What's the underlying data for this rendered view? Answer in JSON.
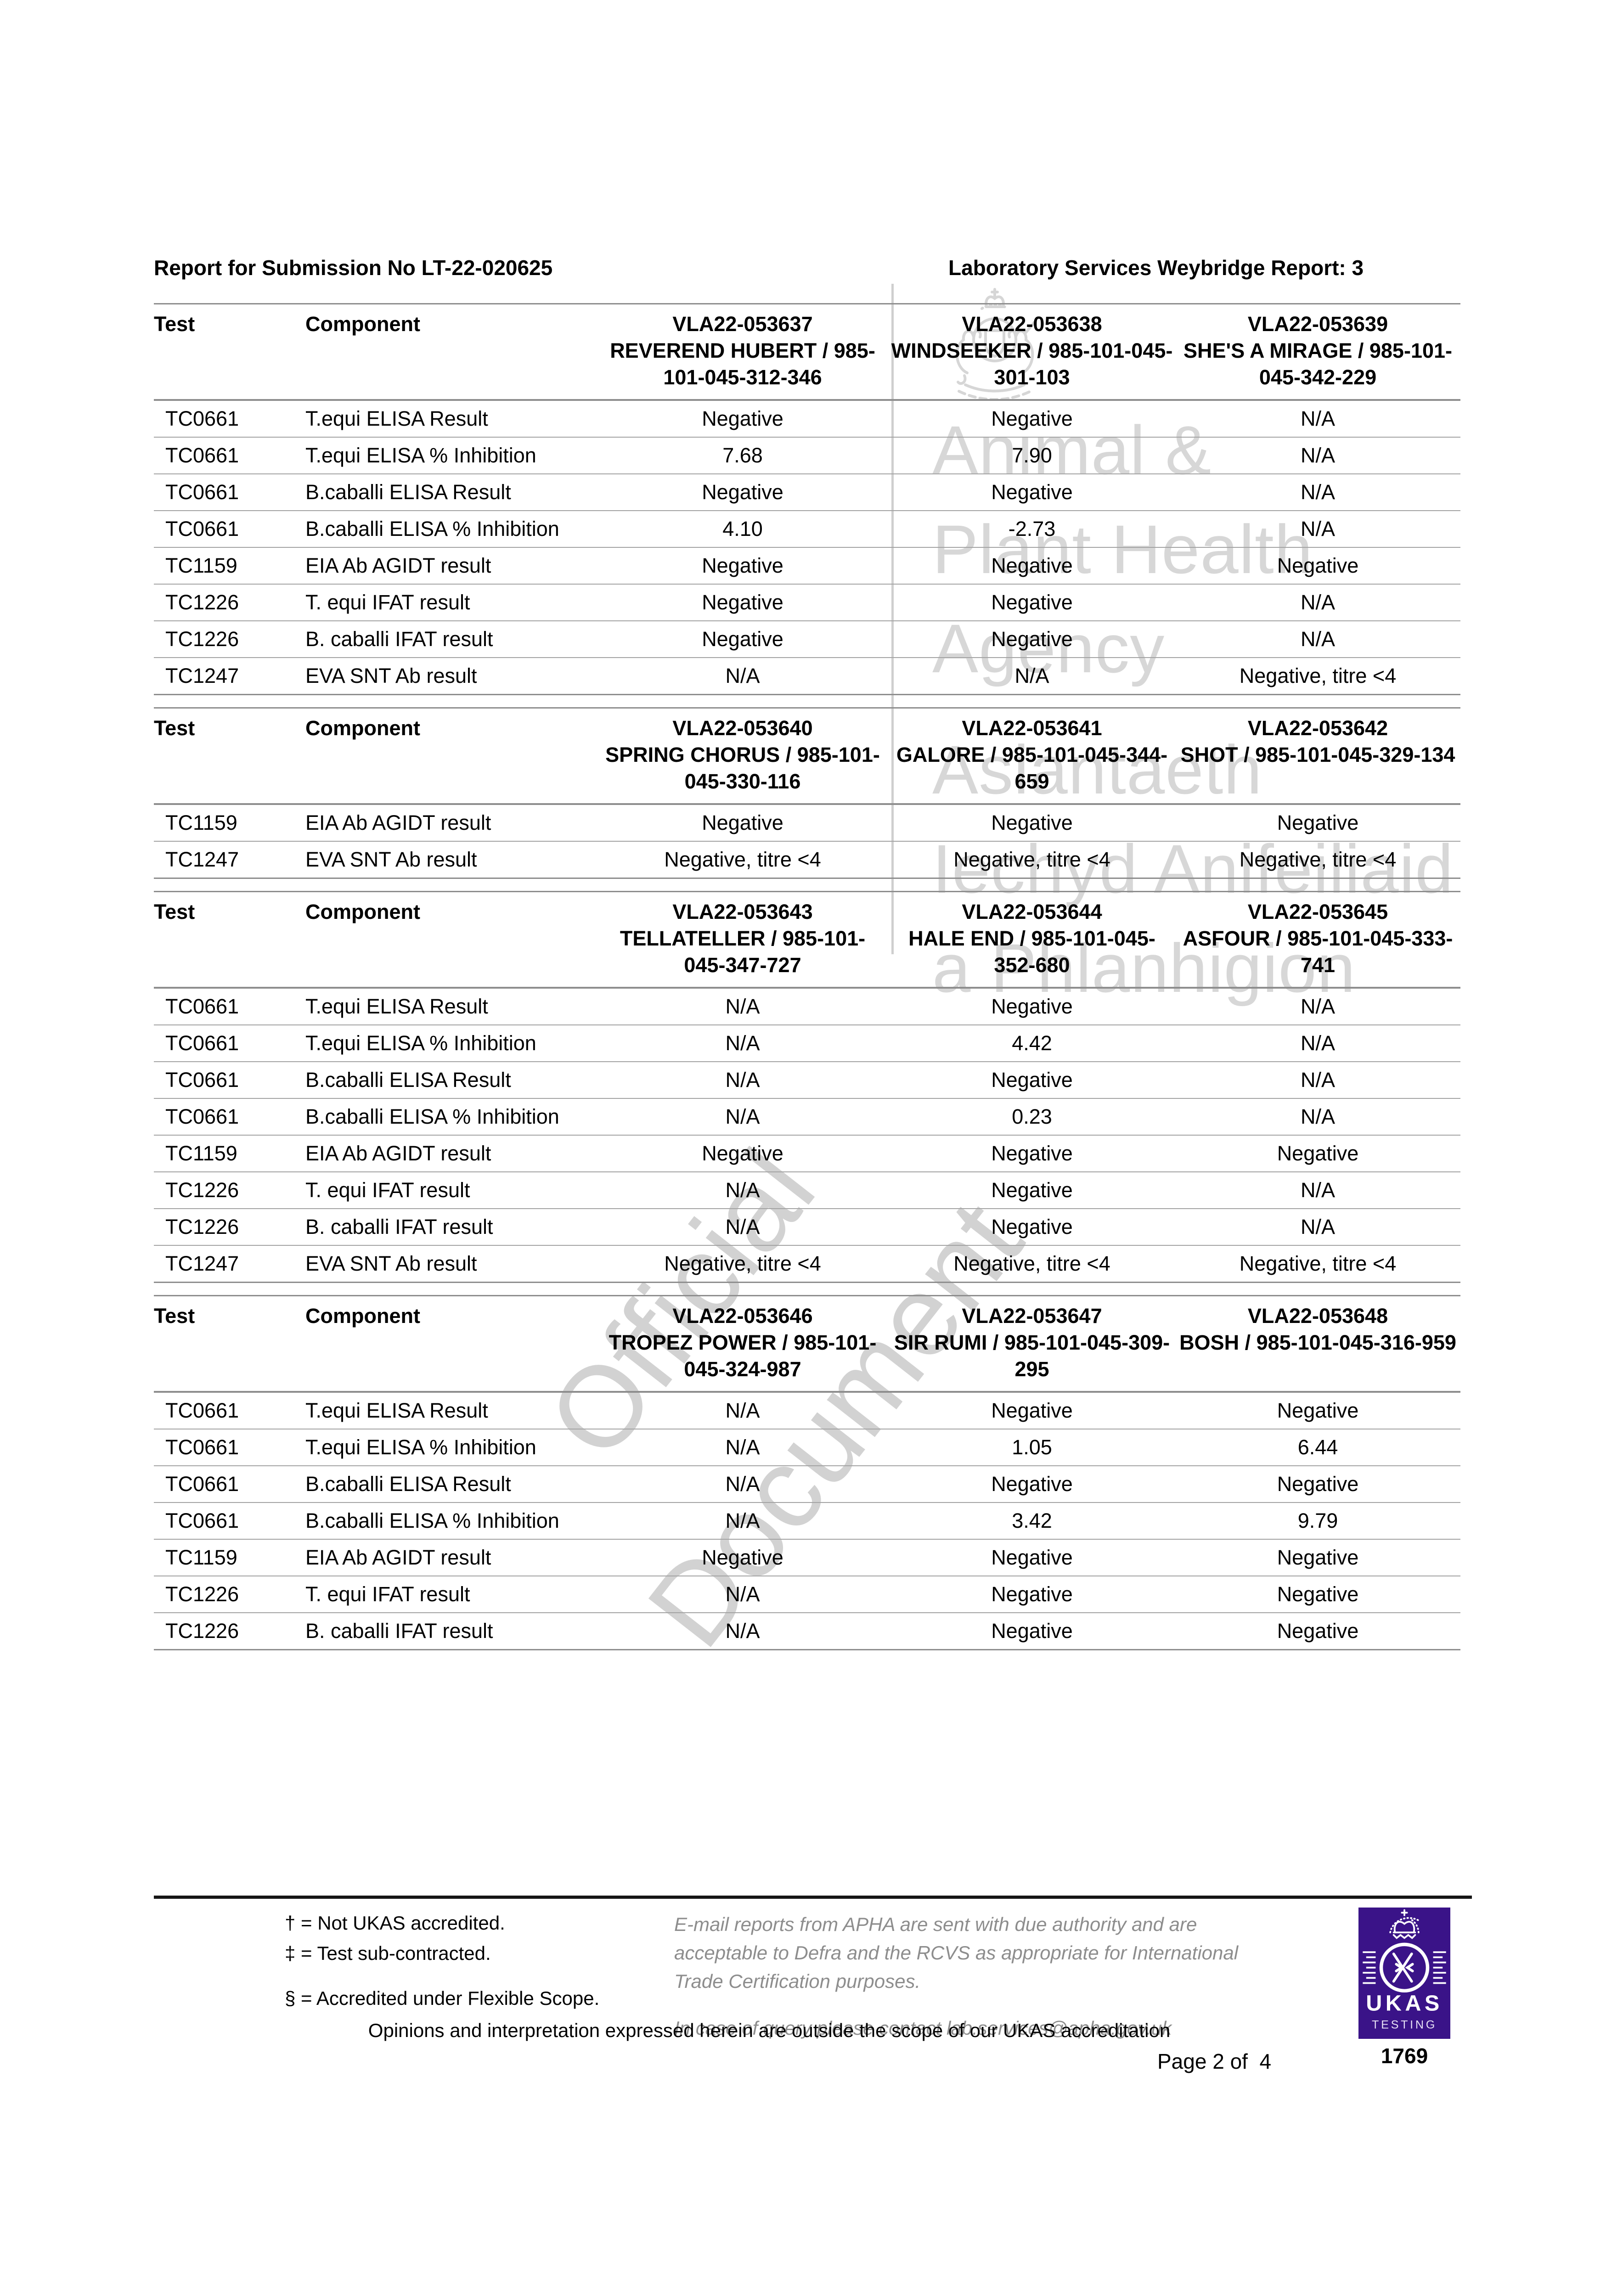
{
  "header": {
    "left": "Report for Submission No LT-22-020625",
    "right": "Laboratory Services Weybridge Report: 3"
  },
  "watermarks": {
    "english": [
      "Animal &",
      "Plant Health",
      "Agency"
    ],
    "welsh": [
      "Asiantaeth",
      "Iechyd Anifeiliaid",
      "a Phlanhigion"
    ],
    "diagonal": [
      "Official",
      "Document"
    ]
  },
  "table_labels": {
    "test": "Test",
    "component": "Component"
  },
  "tables": [
    {
      "animals": [
        {
          "vla": "VLA22-053637",
          "name": "REVEREND HUBERT / 985-101-045-312-346"
        },
        {
          "vla": "VLA22-053638",
          "name": "WINDSEEKER / 985-101-045-301-103"
        },
        {
          "vla": "VLA22-053639",
          "name": "SHE'S A MIRAGE / 985-101-045-342-229"
        }
      ],
      "rows": [
        {
          "test": "TC0661",
          "component": "T.equi ELISA Result",
          "values": [
            "Negative",
            "Negative",
            "N/A"
          ]
        },
        {
          "test": "TC0661",
          "component": "T.equi ELISA % Inhibition",
          "values": [
            "7.68",
            "7.90",
            "N/A"
          ]
        },
        {
          "test": "TC0661",
          "component": "B.caballi ELISA Result",
          "values": [
            "Negative",
            "Negative",
            "N/A"
          ]
        },
        {
          "test": "TC0661",
          "component": "B.caballi ELISA % Inhibition",
          "values": [
            "4.10",
            "-2.73",
            "N/A"
          ]
        },
        {
          "test": "TC1159",
          "component": "EIA Ab AGIDT result",
          "values": [
            "Negative",
            "Negative",
            "Negative"
          ]
        },
        {
          "test": "TC1226",
          "component": "T. equi IFAT result",
          "values": [
            "Negative",
            "Negative",
            "N/A"
          ]
        },
        {
          "test": "TC1226",
          "component": "B. caballi IFAT result",
          "values": [
            "Negative",
            "Negative",
            "N/A"
          ]
        },
        {
          "test": "TC1247",
          "component": "EVA SNT Ab result",
          "values": [
            "N/A",
            "N/A",
            "Negative, titre <4"
          ]
        }
      ]
    },
    {
      "animals": [
        {
          "vla": "VLA22-053640",
          "name": "SPRING CHORUS / 985-101-045-330-116"
        },
        {
          "vla": "VLA22-053641",
          "name": "GALORE / 985-101-045-344-659"
        },
        {
          "vla": "VLA22-053642",
          "name": "SHOT / 985-101-045-329-134"
        }
      ],
      "rows": [
        {
          "test": "TC1159",
          "component": "EIA Ab AGIDT result",
          "values": [
            "Negative",
            "Negative",
            "Negative"
          ]
        },
        {
          "test": "TC1247",
          "component": "EVA SNT Ab result",
          "values": [
            "Negative, titre <4",
            "Negative, titre <4",
            "Negative, titre <4"
          ]
        }
      ]
    },
    {
      "animals": [
        {
          "vla": "VLA22-053643",
          "name": "TELLATELLER / 985-101-045-347-727"
        },
        {
          "vla": "VLA22-053644",
          "name": "HALE END / 985-101-045-352-680"
        },
        {
          "vla": "VLA22-053645",
          "name": "ASFOUR / 985-101-045-333-741"
        }
      ],
      "rows": [
        {
          "test": "TC0661",
          "component": "T.equi ELISA Result",
          "values": [
            "N/A",
            "Negative",
            "N/A"
          ]
        },
        {
          "test": "TC0661",
          "component": "T.equi ELISA % Inhibition",
          "values": [
            "N/A",
            "4.42",
            "N/A"
          ]
        },
        {
          "test": "TC0661",
          "component": "B.caballi ELISA Result",
          "values": [
            "N/A",
            "Negative",
            "N/A"
          ]
        },
        {
          "test": "TC0661",
          "component": "B.caballi ELISA % Inhibition",
          "values": [
            "N/A",
            "0.23",
            "N/A"
          ]
        },
        {
          "test": "TC1159",
          "component": "EIA Ab AGIDT result",
          "values": [
            "Negative",
            "Negative",
            "Negative"
          ]
        },
        {
          "test": "TC1226",
          "component": "T. equi IFAT result",
          "values": [
            "N/A",
            "Negative",
            "N/A"
          ]
        },
        {
          "test": "TC1226",
          "component": "B. caballi IFAT result",
          "values": [
            "N/A",
            "Negative",
            "N/A"
          ]
        },
        {
          "test": "TC1247",
          "component": "EVA SNT Ab result",
          "values": [
            "Negative, titre <4",
            "Negative, titre <4",
            "Negative, titre <4"
          ]
        }
      ]
    },
    {
      "animals": [
        {
          "vla": "VLA22-053646",
          "name": "TROPEZ POWER / 985-101-045-324-987"
        },
        {
          "vla": "VLA22-053647",
          "name": "SIR RUMI / 985-101-045-309-295"
        },
        {
          "vla": "VLA22-053648",
          "name": "BOSH / 985-101-045-316-959"
        }
      ],
      "rows": [
        {
          "test": "TC0661",
          "component": "T.equi ELISA Result",
          "values": [
            "N/A",
            "Negative",
            "Negative"
          ]
        },
        {
          "test": "TC0661",
          "component": "T.equi ELISA % Inhibition",
          "values": [
            "N/A",
            "1.05",
            "6.44"
          ]
        },
        {
          "test": "TC0661",
          "component": "B.caballi ELISA Result",
          "values": [
            "N/A",
            "Negative",
            "Negative"
          ]
        },
        {
          "test": "TC0661",
          "component": "B.caballi ELISA % Inhibition",
          "values": [
            "N/A",
            "3.42",
            "9.79"
          ]
        },
        {
          "test": "TC1159",
          "component": "EIA Ab AGIDT result",
          "values": [
            "Negative",
            "Negative",
            "Negative"
          ]
        },
        {
          "test": "TC1226",
          "component": "T. equi IFAT result",
          "values": [
            "N/A",
            "Negative",
            "Negative"
          ]
        },
        {
          "test": "TC1226",
          "component": "B. caballi IFAT result",
          "values": [
            "N/A",
            "Negative",
            "Negative"
          ]
        }
      ]
    }
  ],
  "footer": {
    "footnotes": [
      "† = Not UKAS accredited.",
      "‡ = Test sub-contracted.",
      "§ = Accredited under Flexible Scope."
    ],
    "email_note": "E-mail reports from APHA are sent with due authority and are acceptable to Defra and the RCVS as appropriate for International Trade Certification purposes.",
    "query_note": "In case of query please contact lab.services@apha.gov.uk",
    "opinions": "Opinions and interpretation expressed herein are outside the scope of our UKAS accreditation",
    "page": "Page 2 of  4",
    "ukas": {
      "label": "UKAS",
      "sub": "TESTING",
      "number": "1769",
      "purple": "#3a1388"
    }
  }
}
